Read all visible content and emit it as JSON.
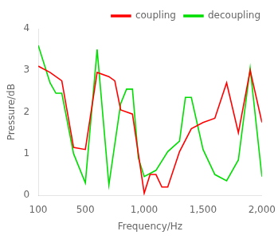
{
  "chart_data": {
    "type": "line",
    "xlabel": "Frequency/Hz",
    "ylabel": "Pressure/dB",
    "series": [
      {
        "name": "coupling",
        "color": "#ff0000",
        "x": [
          100,
          200,
          300,
          400,
          500,
          600,
          700,
          750,
          800,
          900,
          1000,
          1050,
          1100,
          1150,
          1200,
          1300,
          1400,
          1500,
          1600,
          1700,
          1800,
          1900,
          2000
        ],
        "values": [
          3.1,
          2.95,
          2.75,
          1.15,
          1.1,
          2.95,
          2.85,
          2.75,
          2.05,
          1.95,
          0.05,
          0.5,
          0.5,
          0.2,
          0.2,
          1.05,
          1.6,
          1.75,
          1.85,
          2.7,
          1.5,
          3.0,
          1.75
        ]
      },
      {
        "name": "decoupling",
        "color": "#00dd00",
        "x": [
          100,
          200,
          250,
          300,
          400,
          500,
          600,
          700,
          800,
          850,
          900,
          950,
          1000,
          1100,
          1200,
          1300,
          1350,
          1400,
          1500,
          1600,
          1700,
          1800,
          1900,
          2000
        ],
        "values": [
          3.6,
          2.7,
          2.45,
          2.45,
          1.0,
          0.3,
          3.5,
          0.25,
          2.2,
          2.55,
          2.55,
          0.9,
          0.45,
          0.6,
          1.05,
          1.3,
          2.35,
          2.35,
          1.1,
          0.5,
          0.35,
          0.85,
          3.05,
          0.45
        ]
      }
    ],
    "xlim": [
      100,
      2000
    ],
    "ylim": [
      0,
      4
    ],
    "xticks": [
      100,
      500,
      1000,
      1500,
      2000
    ],
    "yticks": [
      0,
      1,
      2,
      3,
      4
    ],
    "legend": "upper right",
    "grid": false
  }
}
